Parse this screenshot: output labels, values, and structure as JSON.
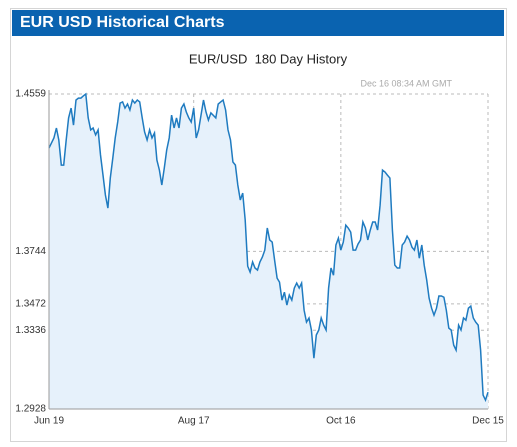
{
  "header": "EUR USD Historical Charts",
  "chart_data": {
    "type": "line",
    "title": "EUR/USD  180 Day History",
    "annotation": "Dec 16 08:34 AM GMT",
    "color": "#1f7bc0",
    "fill": "#e6f1fb",
    "grid": true,
    "xlim": [
      0,
      179
    ],
    "xticks": [
      {
        "value": 0,
        "label": "Jun 19"
      },
      {
        "value": 59,
        "label": "Aug 17"
      },
      {
        "value": 119,
        "label": "Oct 16"
      },
      {
        "value": 179,
        "label": "Dec 15"
      }
    ],
    "ylim": [
      1.2928,
      1.4559
    ],
    "yticks": [
      1.2928,
      1.3336,
      1.3472,
      1.3744,
      1.4559
    ],
    "x": [
      0,
      2,
      3,
      4,
      5,
      6,
      7,
      8,
      9,
      10,
      11,
      12,
      13,
      14,
      15,
      16,
      17,
      18,
      19,
      20,
      21,
      22,
      23,
      24,
      25,
      26,
      27,
      28,
      29,
      30,
      31,
      32,
      33,
      34,
      35,
      36,
      37,
      38,
      39,
      40,
      41,
      42,
      43,
      44,
      45,
      46,
      47,
      48,
      49,
      50,
      51,
      52,
      53,
      54,
      55,
      56,
      57,
      58,
      59,
      60,
      61,
      63,
      64,
      65,
      66,
      68,
      69,
      70,
      71,
      72,
      73,
      74,
      75,
      76,
      77,
      78,
      79,
      80,
      81,
      82,
      83,
      84,
      85,
      86,
      87,
      88,
      89,
      90,
      91,
      92,
      93,
      94,
      95,
      96,
      97,
      98,
      99,
      100,
      101,
      102,
      103,
      104,
      105,
      106,
      107,
      108,
      109,
      110,
      111,
      112,
      113,
      114,
      115,
      116,
      117,
      118,
      119,
      120,
      121,
      122,
      123,
      124,
      125,
      126,
      127,
      128,
      129,
      130,
      131,
      132,
      133,
      134,
      135,
      136,
      137,
      138,
      139,
      140,
      141,
      142,
      143,
      144,
      145,
      146,
      147,
      148,
      149,
      150,
      151,
      152,
      153,
      154,
      155,
      156,
      157,
      158,
      159,
      160,
      161,
      162,
      163,
      164,
      165,
      166,
      167,
      168,
      169,
      170,
      171,
      172,
      173,
      174,
      175,
      176,
      177,
      178,
      179
    ],
    "values": [
      1.4279,
      1.4331,
      1.4383,
      1.4321,
      1.4191,
      1.4191,
      1.4321,
      1.4435,
      1.4486,
      1.4398,
      1.4528,
      1.4538,
      1.4538,
      1.4549,
      1.4559,
      1.4435,
      1.4373,
      1.4383,
      1.4347,
      1.4373,
      1.4243,
      1.4139,
      1.4036,
      1.3968,
      1.4124,
      1.4227,
      1.4331,
      1.4414,
      1.4512,
      1.4518,
      1.4486,
      1.4507,
      1.4476,
      1.4528,
      1.4512,
      1.4528,
      1.4518,
      1.4435,
      1.4362,
      1.4321,
      1.4373,
      1.4331,
      1.4357,
      1.4217,
      1.4165,
      1.4088,
      1.4176,
      1.4269,
      1.4331,
      1.445,
      1.4383,
      1.4435,
      1.4383,
      1.4486,
      1.4507,
      1.4466,
      1.4435,
      1.4414,
      1.4486,
      1.4331,
      1.4373,
      1.4528,
      1.4466,
      1.4424,
      1.4461,
      1.4435,
      1.4507,
      1.4518,
      1.4528,
      1.4476,
      1.4373,
      1.4321,
      1.4207,
      1.4191,
      1.4088,
      1.401,
      1.4046,
      1.3906,
      1.3668,
      1.3637,
      1.3689,
      1.3658,
      1.3647,
      1.3689,
      1.3715,
      1.3751,
      1.3865,
      1.3803,
      1.3792,
      1.3699,
      1.3606,
      1.3585,
      1.3492,
      1.3533,
      1.3466,
      1.3518,
      1.3492,
      1.3554,
      1.358,
      1.3554,
      1.358,
      1.344,
      1.3378,
      1.3399,
      1.3337,
      1.3191,
      1.3311,
      1.3337,
      1.3399,
      1.3362,
      1.3337,
      1.3554,
      1.3658,
      1.3621,
      1.3777,
      1.3813,
      1.3751,
      1.3792,
      1.388,
      1.3865,
      1.3844,
      1.3751,
      1.3751,
      1.3782,
      1.3803,
      1.3896,
      1.3865,
      1.3803,
      1.3855,
      1.3896,
      1.3896,
      1.3855,
      1.3984,
      1.4165,
      1.4155,
      1.4139,
      1.4124,
      1.3855,
      1.3673,
      1.3658,
      1.3658,
      1.3777,
      1.3792,
      1.3823,
      1.3803,
      1.3766,
      1.3751,
      1.3803,
      1.3709,
      1.3777,
      1.3673,
      1.3596,
      1.3502,
      1.345,
      1.3414,
      1.345,
      1.3513,
      1.3513,
      1.3507,
      1.344,
      1.3347,
      1.3337,
      1.3259,
      1.3233,
      1.3362,
      1.3337,
      1.3399,
      1.3388,
      1.345,
      1.3461,
      1.3399,
      1.3378,
      1.3362,
      1.3233,
      1.3,
      1.2974,
      1.3015
    ]
  }
}
